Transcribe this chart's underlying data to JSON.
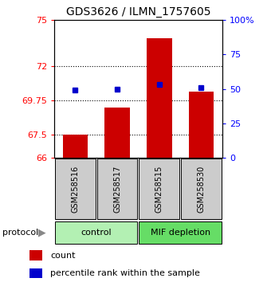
{
  "title": "GDS3626 / ILMN_1757605",
  "samples": [
    "GSM258516",
    "GSM258517",
    "GSM258515",
    "GSM258530"
  ],
  "groups": [
    {
      "name": "control",
      "color": "#b3f0b3",
      "indices": [
        0,
        1
      ]
    },
    {
      "name": "MIF depletion",
      "color": "#66dd66",
      "indices": [
        2,
        3
      ]
    }
  ],
  "bar_values": [
    67.5,
    69.3,
    73.8,
    70.3
  ],
  "percentile_values": [
    49,
    50,
    53,
    51
  ],
  "ymin": 66,
  "ymax": 75,
  "yticks_left": [
    66,
    67.5,
    69.75,
    72,
    75
  ],
  "yticks_right": [
    0,
    25,
    50,
    75,
    100
  ],
  "bar_color": "#cc0000",
  "percentile_color": "#0000cc",
  "dotted_lines": [
    72,
    69.75,
    67.5
  ],
  "legend_bar_label": "count",
  "legend_pct_label": "percentile rank within the sample",
  "protocol_label": "protocol",
  "sample_box_color": "#cccccc",
  "bar_width": 0.6,
  "figwidth": 3.4,
  "figheight": 3.54,
  "dpi": 100
}
